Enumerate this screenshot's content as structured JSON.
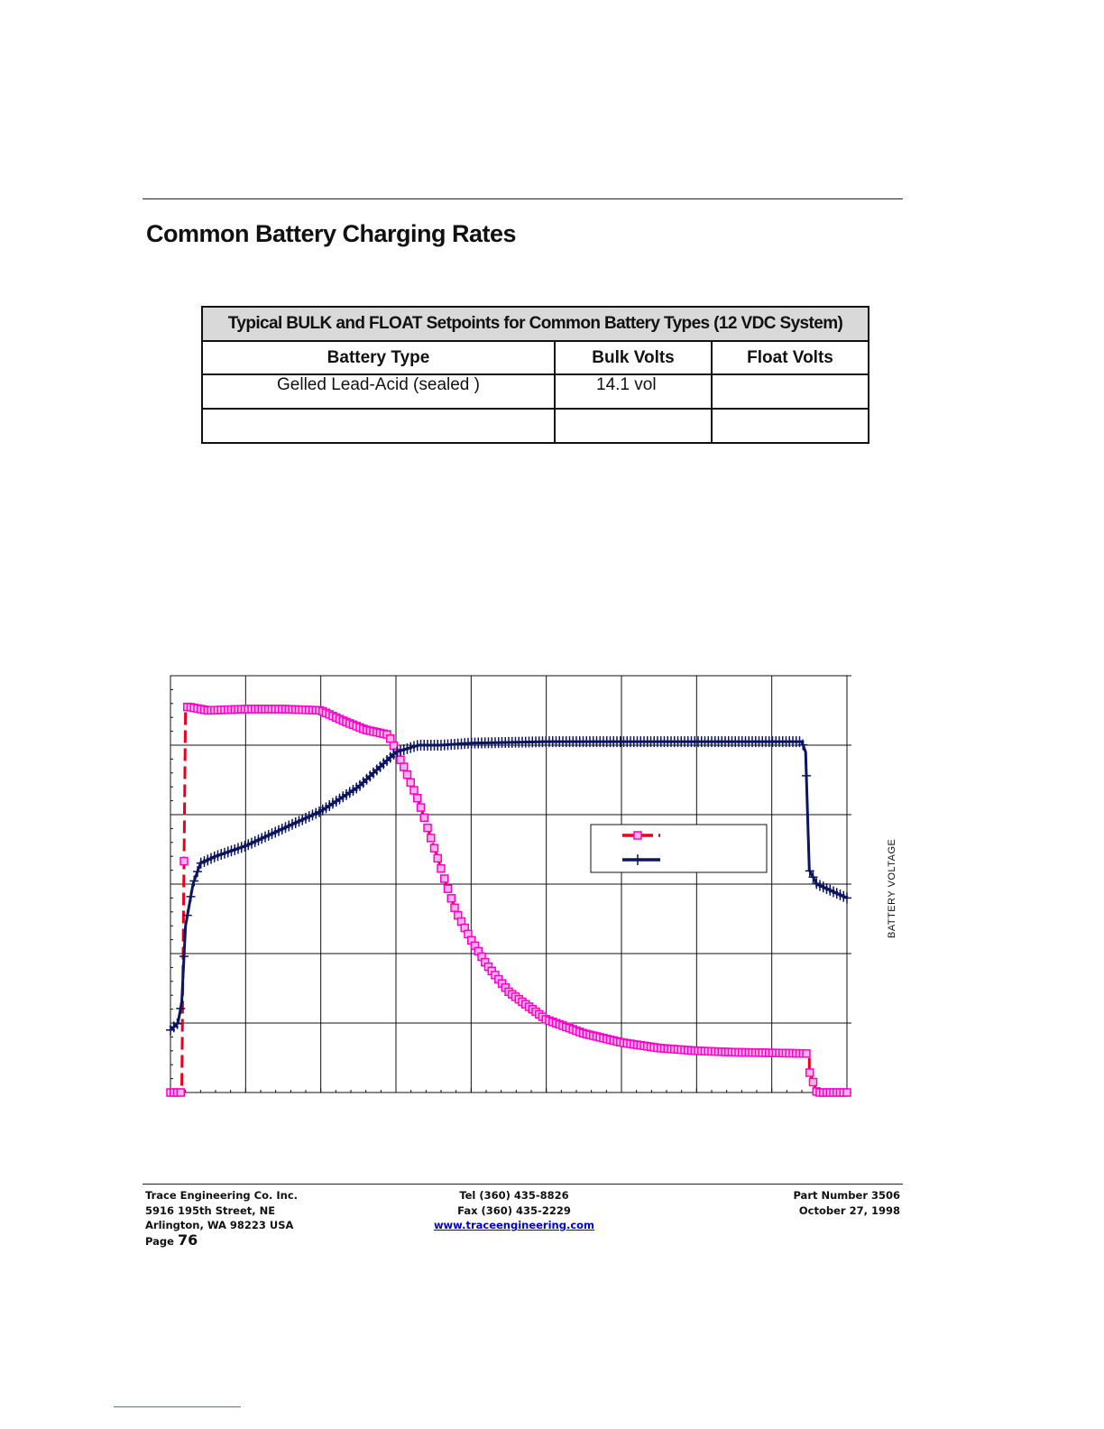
{
  "document": {
    "title": "Common Battery Charging Rates"
  },
  "setpoints_table": {
    "caption": "Typical BULK and FLOAT Setpoints for Common Battery Types (12 VDC System)",
    "headers": [
      "Battery Type",
      "Bulk Volts",
      "Float Volts"
    ],
    "rows": [
      [
        "Gelled Lead-Acid (sealed )",
        "14.1 vol",
        ""
      ],
      [
        "",
        "",
        ""
      ]
    ]
  },
  "chart_data": {
    "type": "line",
    "title": "",
    "xlabel": "",
    "ylabel": "",
    "y2label": "BATTERY VOLTAGE",
    "x_major_divisions": 9,
    "y_major_divisions": 6,
    "grid": true,
    "legend_position": "center-right",
    "series": [
      {
        "name": "",
        "marker": "square",
        "color": "#e8001c",
        "marker_color": "#ff00cc",
        "dash": "dashed",
        "x": [
          0,
          0.15,
          0.2,
          0.25,
          0.5,
          1,
          1.5,
          2,
          2.3,
          2.6,
          2.9,
          3.1,
          3.3,
          3.5,
          3.7,
          3.8,
          4,
          4.2,
          4.5,
          5,
          5.5,
          6,
          6.5,
          7,
          7.5,
          8,
          8.5,
          8.5,
          8.6,
          9
        ],
        "values": [
          0,
          0,
          5.55,
          5.55,
          5.5,
          5.52,
          5.52,
          5.5,
          5.35,
          5.22,
          5.15,
          4.7,
          4.2,
          3.55,
          2.9,
          2.6,
          2.2,
          1.85,
          1.45,
          1.05,
          0.85,
          0.72,
          0.64,
          0.6,
          0.58,
          0.57,
          0.56,
          0.3,
          0,
          0
        ]
      },
      {
        "name": "",
        "marker": "plus",
        "color": "#0b1560",
        "marker_color": "#0b1560",
        "dash": "solid",
        "x": [
          0,
          0.1,
          0.15,
          0.2,
          0.3,
          0.4,
          0.6,
          1,
          1.5,
          2,
          2.5,
          3,
          3.3,
          3.6,
          4,
          5,
          6,
          7,
          8,
          8.4,
          8.45,
          8.5,
          8.6,
          9
        ],
        "values": [
          0.9,
          1,
          1.3,
          2.4,
          3,
          3.3,
          3.4,
          3.55,
          3.8,
          4.05,
          4.4,
          4.9,
          5,
          5,
          5.03,
          5.05,
          5.05,
          5.05,
          5.05,
          5.05,
          4.9,
          3.2,
          3,
          2.8
        ]
      }
    ]
  },
  "footer": {
    "company": "Trace Engineering Co. Inc.",
    "street": "5916 195th Street, NE",
    "city": "Arlington, WA 98223 USA",
    "page_prefix": "Page",
    "page_number": "76",
    "tel": "Tel (360) 435-8826",
    "fax": "Fax (360) 435-2229",
    "website": "www.traceengineering.com",
    "part_number": "Part Number 3506",
    "date": "October 27, 1998"
  }
}
